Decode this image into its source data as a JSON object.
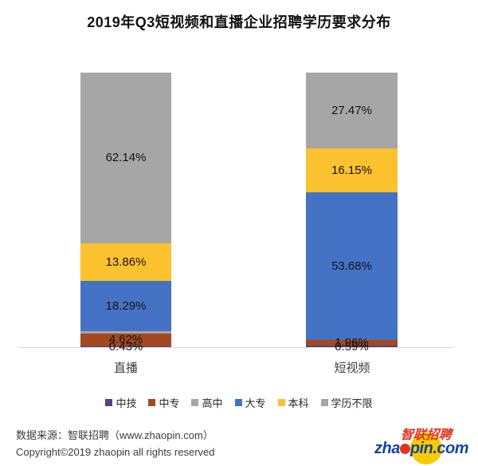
{
  "title": "2019年Q3短视频和直播企业招聘学历要求分布",
  "chart_data": {
    "type": "bar",
    "subtype": "stacked-percentage",
    "unit": "%",
    "categories": [
      "直播",
      "短视频"
    ],
    "series": [
      {
        "name": "中技",
        "color": "#55408a",
        "values": [
          0.43,
          0.59
        ],
        "labels": [
          "0.43%",
          "0.59%"
        ],
        "show_label": [
          true,
          true
        ]
      },
      {
        "name": "中专",
        "color": "#a3491f",
        "values": [
          4.62,
          1.96
        ],
        "labels": [
          "4.62%",
          "1.96%"
        ],
        "show_label": [
          true,
          true
        ]
      },
      {
        "name": "高中",
        "color": "#a6a6a6",
        "values": [
          0.66,
          0.15
        ],
        "labels": [
          "",
          ""
        ],
        "show_label": [
          false,
          false
        ]
      },
      {
        "name": "大专",
        "color": "#4472c4",
        "values": [
          18.29,
          53.68
        ],
        "labels": [
          "18.29%",
          "53.68%"
        ],
        "show_label": [
          true,
          true
        ]
      },
      {
        "name": "本科",
        "color": "#fbc12f",
        "values": [
          13.86,
          16.15
        ],
        "labels": [
          "13.86%",
          "16.15%"
        ],
        "show_label": [
          true,
          true
        ]
      },
      {
        "name": "学历不限",
        "color": "#a6a6a6",
        "values": [
          62.14,
          27.47
        ],
        "labels": [
          "62.14%",
          "27.47%"
        ],
        "show_label": [
          true,
          true
        ]
      }
    ],
    "ylim": [
      0,
      100
    ],
    "grid": false,
    "legend_position": "bottom",
    "axis_line_color": "#d9d9d9"
  },
  "footer": {
    "source": "数据来源：智联招聘（www.zhaopin.com）",
    "copyright": "Copyright©2019 zhaopin all rights reserved"
  },
  "logo": {
    "cjk": "智联招聘",
    "latin_prefix": "zha",
    "latin_suffix": "pin.com"
  }
}
